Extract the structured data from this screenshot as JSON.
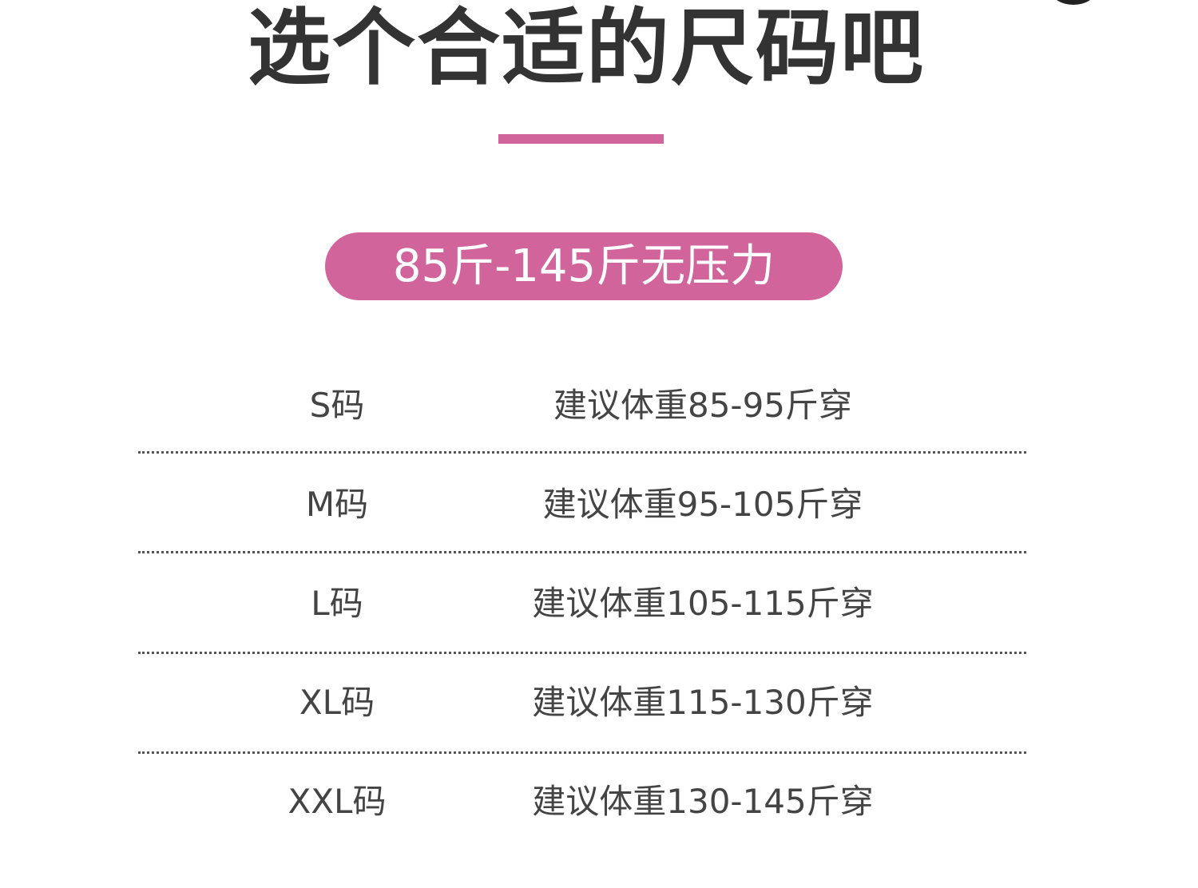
{
  "title": "选个合适的尺码吧",
  "badge": "85斤-145斤无压力",
  "colors": {
    "accent": "#d2649c",
    "text": "#333333"
  },
  "sizes": [
    {
      "size": "S码",
      "advice": "建议体重85-95斤穿"
    },
    {
      "size": "M码",
      "advice": "建议体重95-105斤穿"
    },
    {
      "size": "L码",
      "advice": "建议体重105-115斤穿"
    },
    {
      "size": "XL码",
      "advice": "建议体重115-130斤穿"
    },
    {
      "size": "XXL码",
      "advice": "建议体重130-145斤穿"
    }
  ]
}
